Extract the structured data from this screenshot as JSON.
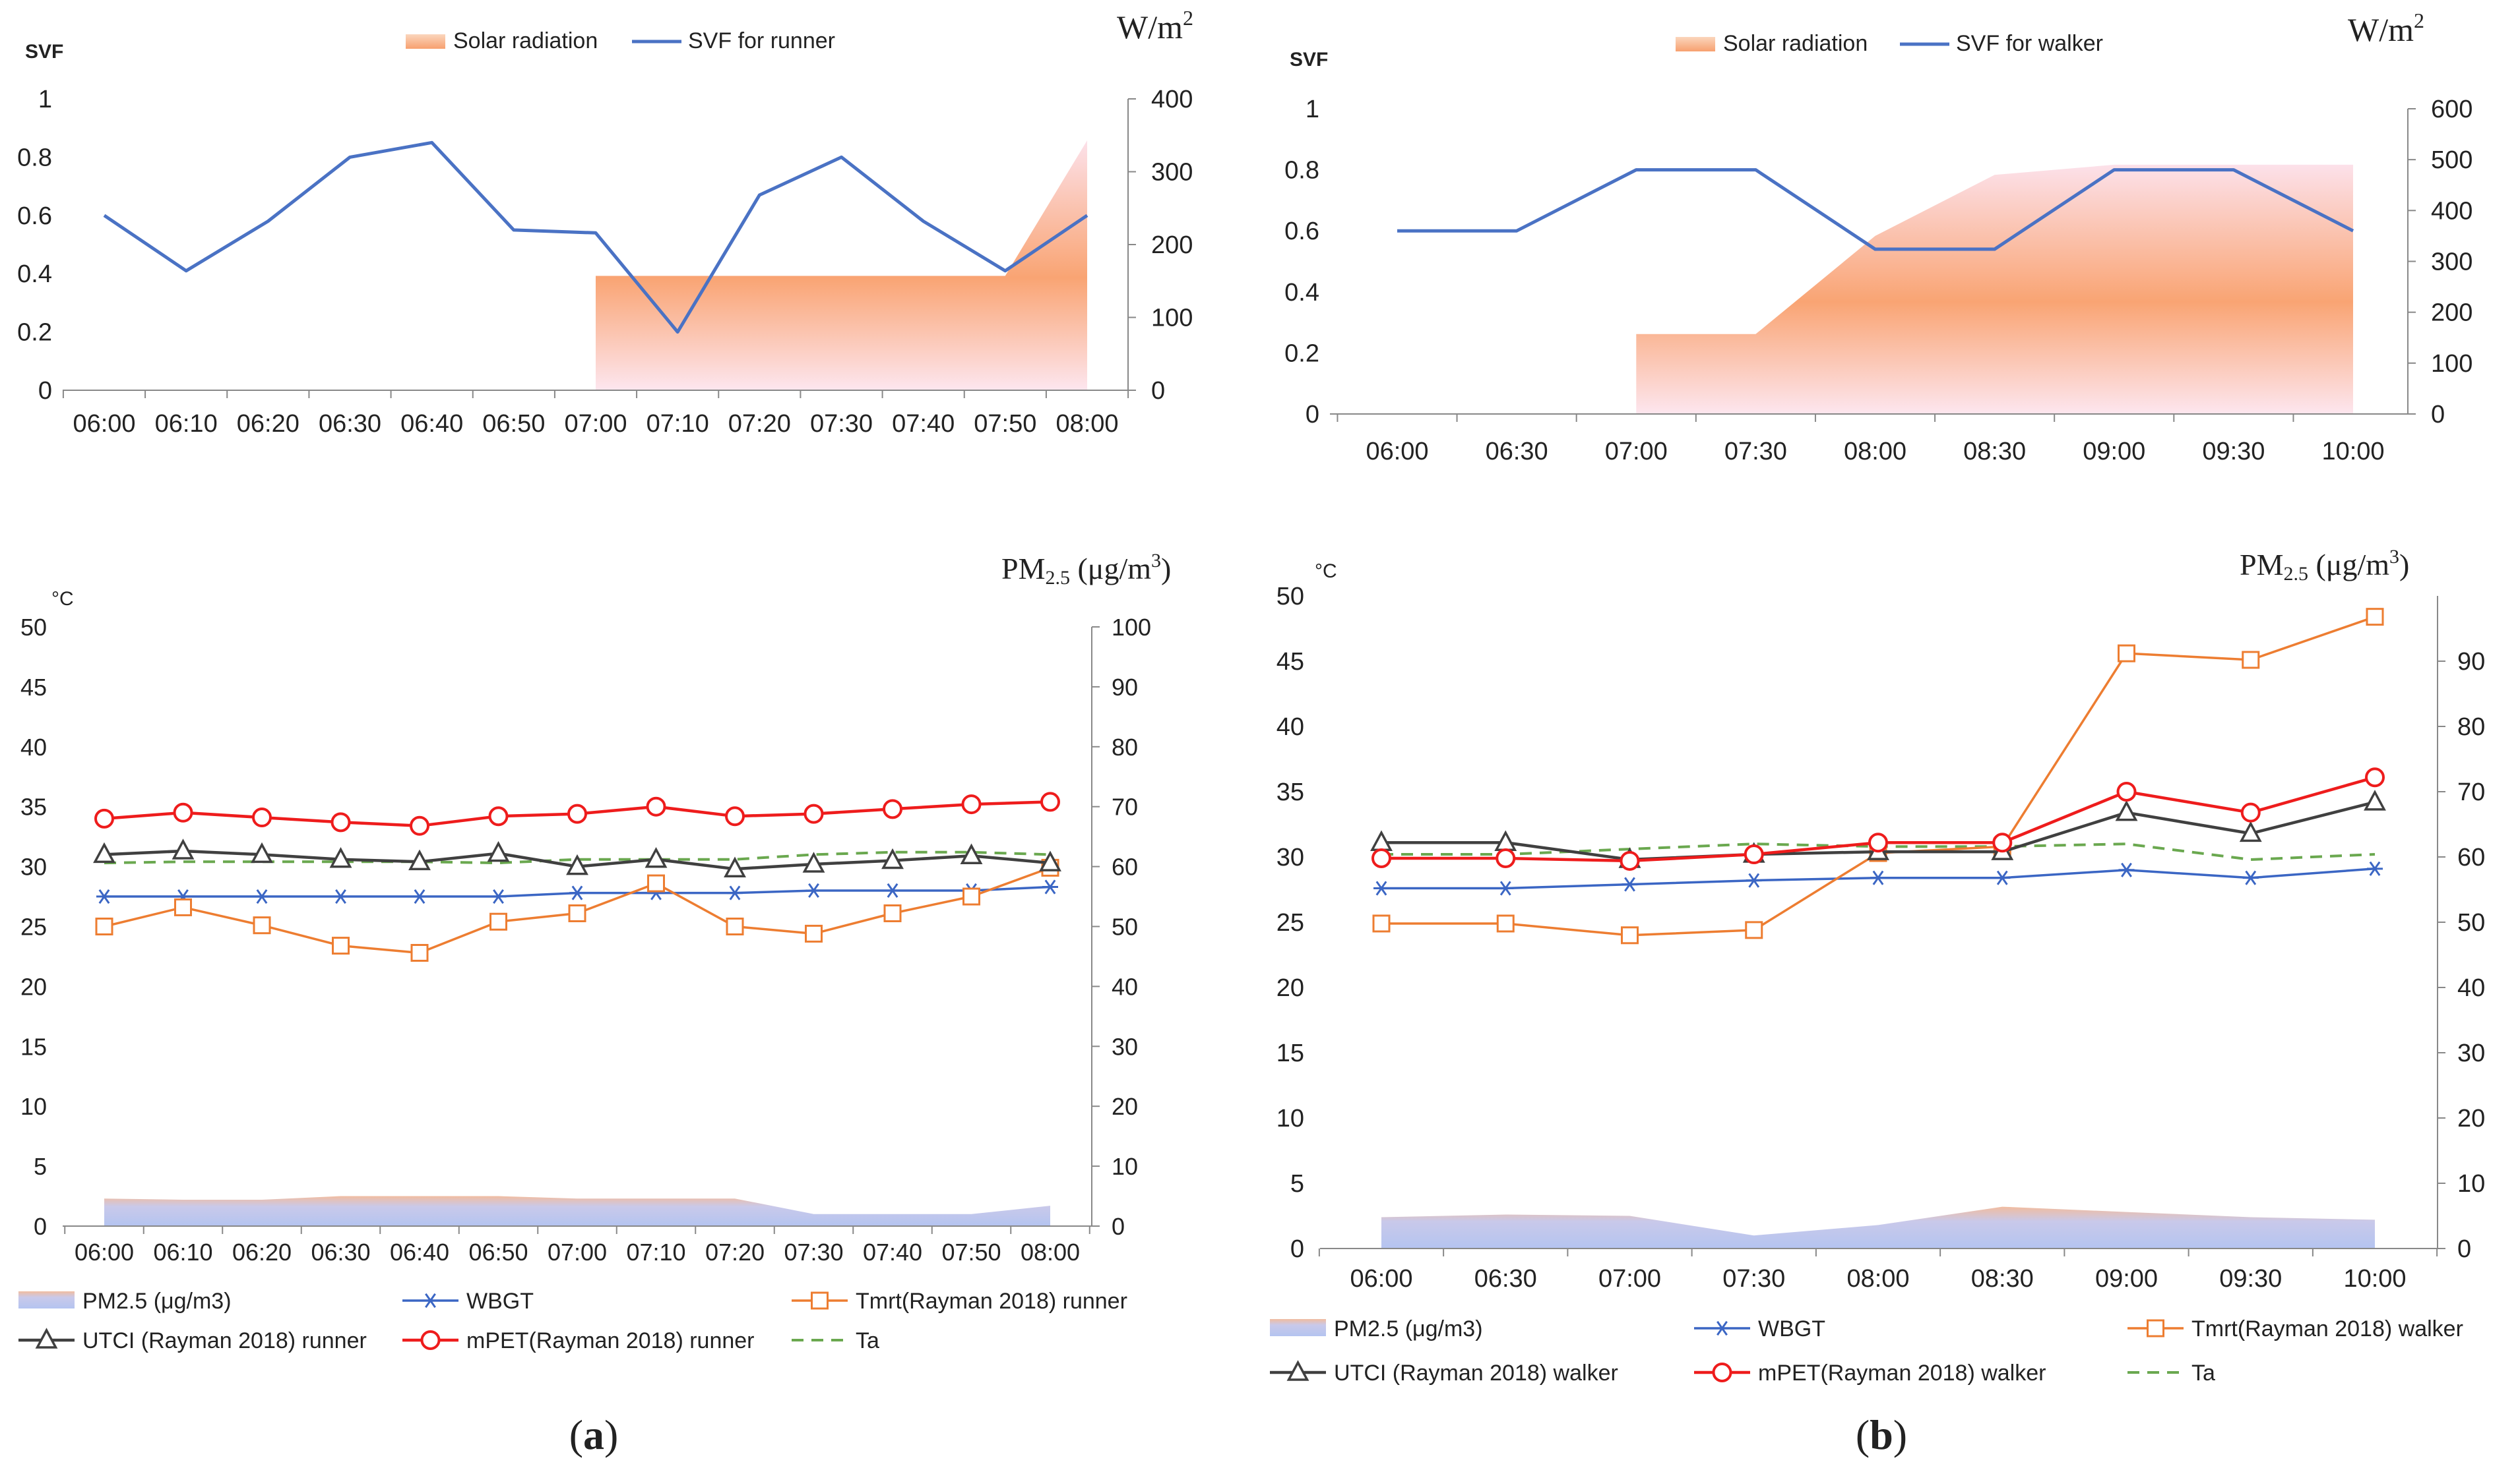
{
  "colors": {
    "svf": "#4a72c4",
    "solar_top": "#fce3e8",
    "solar_mid": "#f9a877",
    "solar_bottom": "#fde9ee",
    "pm_fill": "#b8c7ee",
    "pm_edge": "#f1b99b",
    "wbgt": "#3b66c4",
    "tmrt": "#ed7d31",
    "utci": "#404040",
    "mpet": "#ee1c1c",
    "ta": "#6aa84f",
    "axis": "#888888"
  },
  "chart_data": [
    {
      "id": "a_top",
      "type": "line",
      "panel": "a",
      "legend": [
        "Solar radiation",
        "SVF for runner"
      ],
      "left_axis_label": "SVF",
      "right_axis_label": "W/m",
      "right_axis_sup": "2",
      "categories": [
        "06:00",
        "06:10",
        "06:20",
        "06:30",
        "06:40",
        "06:50",
        "07:00",
        "07:10",
        "07:20",
        "07:30",
        "07:40",
        "07:50",
        "08:00"
      ],
      "ylim": [
        0,
        1
      ],
      "yticks": [
        "0",
        "0.2",
        "0.4",
        "0.6",
        "0.8",
        "1"
      ],
      "y2lim": [
        0,
        400
      ],
      "y2ticks": [
        "0",
        "100",
        "200",
        "300",
        "400"
      ],
      "series": [
        {
          "name": "SVF for runner",
          "axis": "left",
          "values": [
            0.6,
            0.41,
            0.58,
            0.8,
            0.85,
            0.55,
            0.54,
            0.2,
            0.67,
            0.8,
            0.58,
            0.41,
            0.6
          ]
        },
        {
          "name": "Solar radiation",
          "axis": "right",
          "type": "area",
          "values": [
            null,
            null,
            null,
            null,
            null,
            null,
            157,
            157,
            157,
            157,
            157,
            157,
            343
          ]
        }
      ]
    },
    {
      "id": "b_top",
      "type": "line",
      "panel": "b",
      "legend": [
        "Solar radiation",
        "SVF for walker"
      ],
      "left_axis_label": "SVF",
      "right_axis_label": "W/m",
      "right_axis_sup": "2",
      "categories": [
        "06:00",
        "06:30",
        "07:00",
        "07:30",
        "08:00",
        "08:30",
        "09:00",
        "09:30",
        "10:00"
      ],
      "ylim": [
        0,
        1
      ],
      "yticks": [
        "0",
        "0.2",
        "0.4",
        "0.6",
        "0.8",
        "1"
      ],
      "y2lim": [
        0,
        600
      ],
      "y2ticks": [
        "0",
        "100",
        "200",
        "300",
        "400",
        "500",
        "600"
      ],
      "series": [
        {
          "name": "SVF for walker",
          "axis": "left",
          "values": [
            0.6,
            0.6,
            0.8,
            0.8,
            0.54,
            0.54,
            0.8,
            0.8,
            0.6
          ]
        },
        {
          "name": "Solar radiation",
          "axis": "right",
          "type": "area",
          "values": [
            null,
            null,
            157,
            157,
            350,
            470,
            490,
            490,
            490
          ]
        }
      ]
    },
    {
      "id": "a_bottom",
      "type": "line",
      "panel": "a",
      "left_axis_label": "°C",
      "right_axis_label": "PM",
      "right_axis_sub": "2.5",
      "right_axis_unit": " (μg/m",
      "right_axis_sup": "3",
      "right_axis_close": ")",
      "categories": [
        "06:00",
        "06:10",
        "06:20",
        "06:30",
        "06:40",
        "06:50",
        "07:00",
        "07:10",
        "07:20",
        "07:30",
        "07:40",
        "07:50",
        "08:00"
      ],
      "ylim": [
        0,
        50
      ],
      "yticks": [
        "0",
        "5",
        "10",
        "15",
        "20",
        "25",
        "30",
        "35",
        "40",
        "45",
        "50"
      ],
      "y2lim": [
        0,
        100
      ],
      "y2ticks": [
        "0",
        "10",
        "20",
        "30",
        "40",
        "50",
        "60",
        "70",
        "80",
        "90",
        "100"
      ],
      "legend": [
        "PM2.5 (μg/m3)",
        "WBGT",
        "Tmrt(Rayman 2018) runner",
        "UTCI (Rayman 2018) runner",
        "mPET(Rayman 2018) runner",
        "Ta"
      ],
      "series": [
        {
          "name": "PM2.5 (μg/m3)",
          "axis": "right",
          "type": "area",
          "values": [
            4.6,
            4.4,
            4.4,
            5.0,
            5.0,
            5.0,
            4.6,
            4.6,
            4.6,
            2.0,
            2.0,
            2.0,
            3.4
          ]
        },
        {
          "name": "Ta",
          "values": [
            30.3,
            30.4,
            30.4,
            30.4,
            30.4,
            30.3,
            30.6,
            30.6,
            30.6,
            31.0,
            31.2,
            31.2,
            31.0
          ]
        },
        {
          "name": "WBGT",
          "values": [
            27.5,
            27.5,
            27.5,
            27.5,
            27.5,
            27.5,
            27.8,
            27.8,
            27.8,
            28.0,
            28.0,
            28.0,
            28.3
          ]
        },
        {
          "name": "Tmrt(Rayman 2018) runner",
          "values": [
            25.0,
            26.6,
            25.1,
            23.4,
            22.8,
            25.4,
            26.1,
            28.6,
            25.0,
            24.4,
            26.1,
            27.5,
            29.9
          ]
        },
        {
          "name": "UTCI (Rayman 2018) runner",
          "values": [
            31.0,
            31.3,
            31.0,
            30.6,
            30.4,
            31.1,
            30.0,
            30.6,
            29.8,
            30.2,
            30.5,
            30.9,
            30.3
          ]
        },
        {
          "name": "mPET(Rayman 2018) runner",
          "values": [
            34.0,
            34.5,
            34.1,
            33.7,
            33.4,
            34.2,
            34.4,
            35.0,
            34.2,
            34.4,
            34.8,
            35.2,
            35.4
          ]
        }
      ]
    },
    {
      "id": "b_bottom",
      "type": "line",
      "panel": "b",
      "left_axis_label": "°C",
      "right_axis_label": "PM",
      "right_axis_sub": "2.5",
      "right_axis_unit": " (μg/m",
      "right_axis_sup": "3",
      "right_axis_close": ")",
      "categories": [
        "06:00",
        "06:30",
        "07:00",
        "07:30",
        "08:00",
        "08:30",
        "09:00",
        "09:30",
        "10:00"
      ],
      "ylim": [
        0,
        50
      ],
      "yticks": [
        "0",
        "5",
        "10",
        "15",
        "20",
        "25",
        "30",
        "35",
        "40",
        "45",
        "50"
      ],
      "y2lim": [
        0,
        100
      ],
      "y2ticks": [
        "0",
        "10",
        "20",
        "30",
        "40",
        "50",
        "60",
        "70",
        "80",
        "90"
      ],
      "legend": [
        "PM2.5 (μg/m3)",
        "WBGT",
        "Tmrt(Rayman 2018) walker",
        "UTCI (Rayman 2018) walker",
        "mPET(Rayman 2018) walker",
        "Ta"
      ],
      "series": [
        {
          "name": "PM2.5 (μg/m3)",
          "axis": "right",
          "type": "area",
          "values": [
            4.8,
            5.2,
            5.0,
            2.0,
            3.6,
            6.4,
            5.6,
            4.8,
            4.4
          ]
        },
        {
          "name": "Ta",
          "values": [
            30.2,
            30.2,
            30.6,
            31.0,
            30.8,
            30.8,
            31.0,
            29.8,
            30.2
          ]
        },
        {
          "name": "WBGT",
          "values": [
            27.6,
            27.6,
            27.9,
            28.2,
            28.4,
            28.4,
            29.0,
            28.4,
            29.1
          ]
        },
        {
          "name": "Tmrt(Rayman 2018) walker",
          "values": [
            24.9,
            24.9,
            24.0,
            24.4,
            30.3,
            30.8,
            45.6,
            45.1,
            48.4
          ]
        },
        {
          "name": "UTCI (Rayman 2018) walker",
          "values": [
            31.1,
            31.1,
            29.8,
            30.2,
            30.4,
            30.4,
            33.4,
            31.8,
            34.2
          ]
        },
        {
          "name": "mPET(Rayman 2018) walker",
          "values": [
            29.9,
            29.9,
            29.7,
            30.2,
            31.1,
            31.1,
            35.0,
            33.4,
            36.1
          ]
        }
      ]
    }
  ],
  "panel_labels": {
    "a": "a",
    "b": "b"
  }
}
